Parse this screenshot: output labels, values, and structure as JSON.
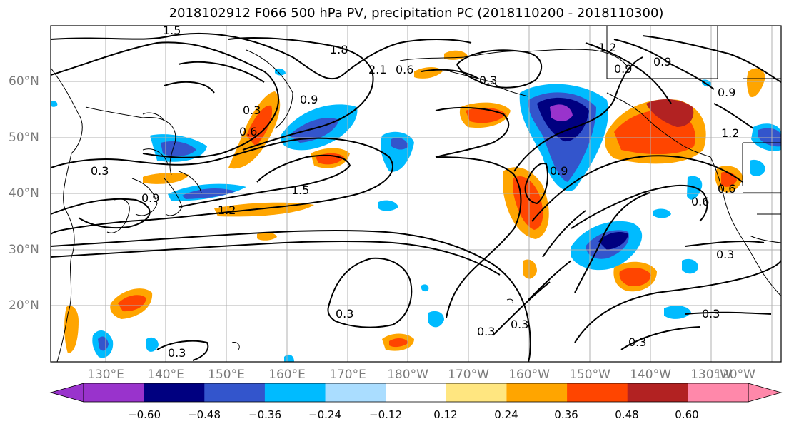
{
  "title": "2018102912 F066 500 hPa PV, precipitation PC (2018110200 - 2018110300)",
  "map": {
    "lat_labels": [
      "60°N",
      "50°N",
      "40°N",
      "30°N",
      "20°N"
    ],
    "lon_labels": [
      "130°E",
      "140°E",
      "150°E",
      "160°E",
      "170°E",
      "180°W",
      "170°W",
      "160°W",
      "150°W",
      "140°W",
      "130°W",
      "120°W"
    ],
    "pv_contour_labels": [
      "1.5",
      "1.8",
      "2.1",
      "0.6",
      "0.3",
      "1.2",
      "0.9",
      "0.9",
      "0.9",
      "0.3",
      "0.6",
      "0.3",
      "0.9",
      "1.5",
      "1.2",
      "0.9",
      "0.9",
      "1.2",
      "0.6",
      "0.6",
      "0.3",
      "0.3",
      "0.3",
      "0.3",
      "0.3",
      "0.3",
      "0.3"
    ],
    "colors": {
      "land_line": "#000000",
      "grid": "#b0b0b0",
      "contour": "#000000"
    }
  },
  "colorbar": {
    "tick_labels": [
      "−0.60",
      "−0.48",
      "−0.36",
      "−0.24",
      "−0.12",
      "0.12",
      "0.24",
      "0.36",
      "0.48",
      "0.60"
    ],
    "colors": [
      "#9933cc",
      "#000080",
      "#3355cc",
      "#00bbff",
      "#aaddff",
      "#ffffff",
      "#ffe680",
      "#ffa500",
      "#ff4500",
      "#b22222",
      "#ff88aa"
    ]
  }
}
